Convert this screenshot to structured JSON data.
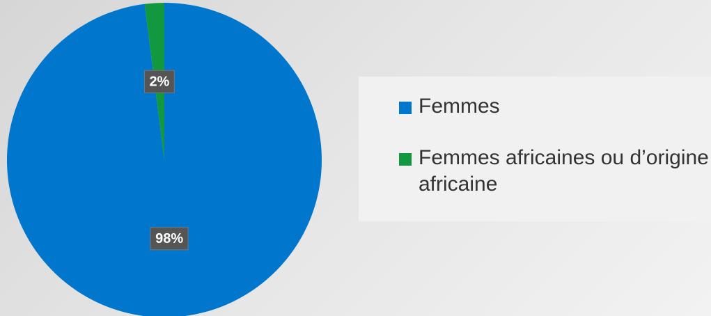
{
  "chart_data": {
    "type": "pie",
    "categories": [
      "Femmes",
      "Femmes africaines ou d’origine africaine"
    ],
    "values": [
      98,
      2
    ],
    "value_labels": [
      "98%",
      "2%"
    ],
    "colors": [
      "#0077cc",
      "#12993f"
    ]
  }
}
